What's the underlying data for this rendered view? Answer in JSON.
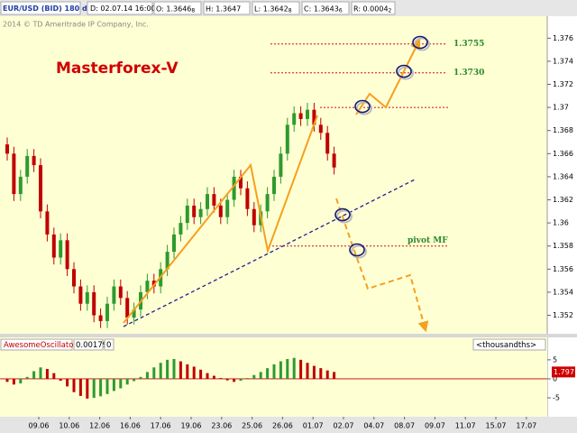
{
  "header": {
    "symbol": "EUR/USD (BID) 180 d 4h",
    "date": "D: 02.07.14 16:00",
    "ohlc": [
      {
        "text": "O: 1.3646",
        "sub": "8"
      },
      {
        "text": "H: 1.3647"
      },
      {
        "text": "L: 1.3642",
        "sub": "8"
      },
      {
        "text": "C: 1.3643",
        "sub": "6"
      },
      {
        "text": "R: 0.0004",
        "sub": "2"
      }
    ]
  },
  "x_axis": {
    "labels": [
      "09.06",
      "10.06",
      "12.06",
      "16.06",
      "17.06",
      "19.06",
      "23.06",
      "25.06",
      "26.06",
      "01.07",
      "02.07",
      "04.07",
      "08.07",
      "09.07",
      "11.07",
      "15.07",
      "17.07"
    ]
  },
  "chart_data": [
    {
      "type": "candlestick",
      "watermark": "Masterforex-V",
      "copyright": "2014 © TD Ameritrade IP Company, Inc.",
      "up_color": "#2f9a2f",
      "down_color": "#c00000",
      "ylim": [
        1.3504,
        1.3779
      ],
      "yticks": [
        1.376,
        1.374,
        1.372,
        1.37,
        1.368,
        1.366,
        1.364,
        1.362,
        1.36,
        1.358,
        1.356,
        1.354,
        1.352
      ],
      "open": [
        1.3668,
        1.366,
        1.3625,
        1.364,
        1.3658,
        1.365,
        1.361,
        1.359,
        1.357,
        1.3585,
        1.356,
        1.3545,
        1.353,
        1.354,
        1.352,
        1.3515,
        1.353,
        1.3545,
        1.3535,
        1.3518,
        1.3525,
        1.354,
        1.355,
        1.3545,
        1.356,
        1.3575,
        1.359,
        1.36,
        1.3615,
        1.3605,
        1.3612,
        1.3625,
        1.3615,
        1.3605,
        1.362,
        1.364,
        1.363,
        1.3612,
        1.3598,
        1.361,
        1.3625,
        1.364,
        1.366,
        1.3685,
        1.3695,
        1.369,
        1.3698,
        1.3685,
        1.3678,
        1.366
      ],
      "high": [
        1.3674,
        1.3666,
        1.3646,
        1.3664,
        1.3664,
        1.3656,
        1.3616,
        1.3596,
        1.3591,
        1.3591,
        1.3566,
        1.3551,
        1.3546,
        1.3546,
        1.3526,
        1.3536,
        1.3551,
        1.3551,
        1.3541,
        1.3531,
        1.3546,
        1.3556,
        1.3556,
        1.3566,
        1.3581,
        1.3596,
        1.3606,
        1.3621,
        1.3621,
        1.3618,
        1.3631,
        1.3631,
        1.3621,
        1.3626,
        1.3646,
        1.3646,
        1.3636,
        1.3618,
        1.3616,
        1.3631,
        1.3646,
        1.3666,
        1.3691,
        1.3701,
        1.3701,
        1.3704,
        1.3704,
        1.3691,
        1.3684,
        1.3666
      ],
      "low": [
        1.3654,
        1.3619,
        1.3619,
        1.3634,
        1.3644,
        1.3604,
        1.3584,
        1.3564,
        1.3564,
        1.3554,
        1.3539,
        1.3524,
        1.3524,
        1.3514,
        1.3509,
        1.3509,
        1.3524,
        1.3529,
        1.3512,
        1.3512,
        1.3519,
        1.3534,
        1.3539,
        1.3539,
        1.3554,
        1.3569,
        1.3584,
        1.3594,
        1.3599,
        1.3599,
        1.3606,
        1.3609,
        1.3599,
        1.3599,
        1.3614,
        1.3624,
        1.3606,
        1.3592,
        1.3592,
        1.3604,
        1.3619,
        1.3634,
        1.3654,
        1.3679,
        1.3684,
        1.3684,
        1.3679,
        1.3672,
        1.3654,
        1.3642
      ],
      "close": [
        1.366,
        1.3625,
        1.364,
        1.3658,
        1.365,
        1.361,
        1.359,
        1.357,
        1.3585,
        1.356,
        1.3545,
        1.353,
        1.354,
        1.352,
        1.3515,
        1.353,
        1.3545,
        1.3535,
        1.3518,
        1.3525,
        1.354,
        1.355,
        1.3545,
        1.356,
        1.3575,
        1.359,
        1.36,
        1.3615,
        1.3605,
        1.3612,
        1.3625,
        1.3615,
        1.3605,
        1.362,
        1.364,
        1.363,
        1.3612,
        1.3598,
        1.361,
        1.3625,
        1.364,
        1.366,
        1.3685,
        1.3695,
        1.369,
        1.3698,
        1.3685,
        1.3678,
        1.366,
        1.3648
      ],
      "levels": [
        {
          "value": 1.3755,
          "label": "1.3755"
        },
        {
          "value": 1.373,
          "label": "1.3730"
        },
        {
          "value": 1.37
        },
        {
          "value": 1.358,
          "label": "pivot MF"
        }
      ],
      "level_color": "#d01010"
    },
    {
      "type": "histogram",
      "title": "AwesomeOscillator",
      "current_value": "0.001797",
      "setting": "0",
      "units_label": "<thousandths>",
      "up_color": "#2f9a2f",
      "down_color": "#c00000",
      "ylim": [
        -9.5,
        7.1
      ],
      "yticks": [
        5,
        0,
        -5
      ],
      "values": [
        -0.8,
        -1.5,
        -1.2,
        0.5,
        2.0,
        3.0,
        2.6,
        1.5,
        -0.5,
        -2.0,
        -3.5,
        -4.5,
        -5.2,
        -5.0,
        -4.6,
        -4.0,
        -3.2,
        -2.5,
        -1.5,
        -0.6,
        0.5,
        1.8,
        3.0,
        4.2,
        5.0,
        5.2,
        4.6,
        3.8,
        3.2,
        2.4,
        1.5,
        0.8,
        0.2,
        -0.4,
        -0.8,
        -0.5,
        0.2,
        1.0,
        1.8,
        2.8,
        3.8,
        4.6,
        5.2,
        5.5,
        5.0,
        4.2,
        3.4,
        2.8,
        2.2,
        1.797
      ]
    }
  ]
}
